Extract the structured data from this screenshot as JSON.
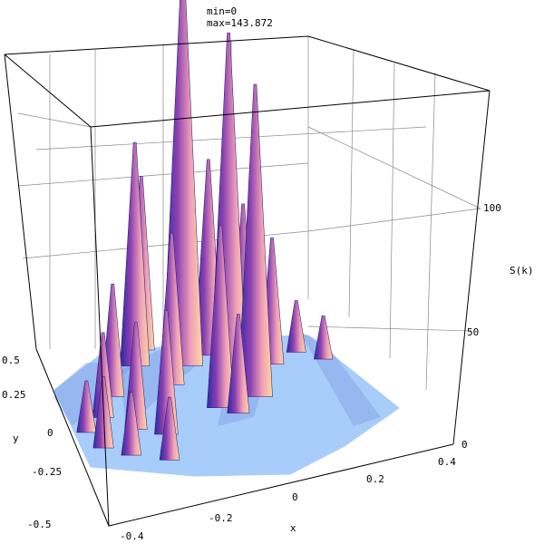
{
  "chart_data": {
    "type": "surface3d",
    "annotations": {
      "min_label": "min=0",
      "max_label": "max=143.872"
    },
    "x_axis": {
      "label": "x",
      "ticks": [
        "-0.4",
        "-0.2",
        "0",
        "0.2",
        "0.4"
      ],
      "range": [
        -0.5,
        0.5
      ]
    },
    "y_axis": {
      "label": "y",
      "ticks": [
        "0.5",
        "0.25",
        "0",
        "-0.25",
        "-0.5"
      ],
      "range": [
        -0.5,
        0.5
      ]
    },
    "z_axis": {
      "label": "S(k)",
      "ticks": [
        "0",
        "50",
        "100"
      ],
      "range": [
        0,
        143.872
      ]
    },
    "grid": true,
    "floor_color": "#a9cdfb",
    "peak_colors": [
      "#2a2aa6",
      "#8a3fb0",
      "#f0a0b8",
      "#ffd9a0"
    ],
    "peaks": [
      {
        "x": -0.05,
        "y": 0.27,
        "z": 143.9
      },
      {
        "x": 0.05,
        "y": 0.12,
        "z": 126
      },
      {
        "x": -0.15,
        "y": 0.4,
        "z": 62
      },
      {
        "x": -0.2,
        "y": 0.32,
        "z": 80
      },
      {
        "x": -0.12,
        "y": 0.18,
        "z": 54
      },
      {
        "x": 0.05,
        "y": 0.3,
        "z": 70
      },
      {
        "x": 0.13,
        "y": 0.2,
        "z": 58
      },
      {
        "x": 0.1,
        "y": 0.02,
        "z": 112
      },
      {
        "x": -0.32,
        "y": 0.18,
        "z": 40
      },
      {
        "x": -0.38,
        "y": 0.08,
        "z": 30
      },
      {
        "x": -0.3,
        "y": -0.02,
        "z": 38
      },
      {
        "x": -0.22,
        "y": -0.08,
        "z": 44
      },
      {
        "x": -0.45,
        "y": 0.02,
        "z": 18
      },
      {
        "x": -0.42,
        "y": -0.08,
        "z": 25
      },
      {
        "x": -0.35,
        "y": -0.15,
        "z": 22
      },
      {
        "x": -0.25,
        "y": -0.22,
        "z": 22
      },
      {
        "x": 0.2,
        "y": 0.38,
        "z": 28
      },
      {
        "x": 0.28,
        "y": 0.32,
        "z": 22
      },
      {
        "x": 0.32,
        "y": 0.22,
        "z": 18
      },
      {
        "x": 0.38,
        "y": 0.15,
        "z": 15
      },
      {
        "x": 0.15,
        "y": 0.28,
        "z": 24
      },
      {
        "x": 0.22,
        "y": 0.18,
        "z": 45
      },
      {
        "x": 0.02,
        "y": -0.05,
        "z": 35
      },
      {
        "x": -0.02,
        "y": 0.0,
        "z": 65
      }
    ]
  }
}
